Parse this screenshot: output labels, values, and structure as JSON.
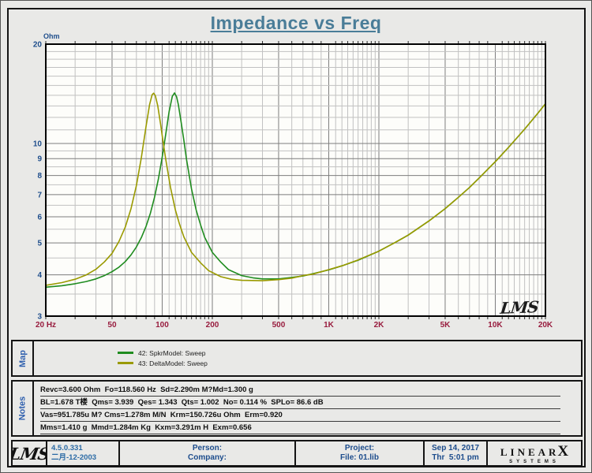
{
  "window": {
    "title": "Impedance vs Freq"
  },
  "graph": {
    "ohm_label": "Ohm",
    "watermark": "LMS"
  },
  "chart_data": {
    "type": "line",
    "title": "Impedance vs Freq",
    "ylabel": "Ohm",
    "x_scale": "log",
    "y_scale": "log",
    "xlim": [
      20,
      20000
    ],
    "ylim": [
      3,
      20
    ],
    "grid": {
      "v_mantissas": [
        1.1,
        1.2,
        1.3,
        1.4,
        1.5,
        1.6,
        1.7,
        1.8,
        1.9,
        2,
        3,
        4,
        5,
        6,
        7,
        8,
        9
      ],
      "v_major": [
        20,
        50,
        100,
        200,
        500,
        1000,
        2000,
        5000,
        10000,
        20000
      ],
      "h_minor": [
        3.5,
        4.5,
        5.5,
        6.5,
        7.5,
        8.5,
        9.5,
        11,
        12,
        13,
        14,
        15,
        16,
        17,
        18,
        19
      ],
      "h_major": [
        3,
        4,
        5,
        6,
        7,
        8,
        9,
        10,
        20
      ]
    },
    "x_ticks": [
      {
        "f": 20,
        "label": "20 Hz"
      },
      {
        "f": 50,
        "label": "50"
      },
      {
        "f": 100,
        "label": "100"
      },
      {
        "f": 200,
        "label": "200"
      },
      {
        "f": 500,
        "label": "500"
      },
      {
        "f": 1000,
        "label": "1K"
      },
      {
        "f": 2000,
        "label": "2K"
      },
      {
        "f": 5000,
        "label": "5K"
      },
      {
        "f": 10000,
        "label": "10K"
      },
      {
        "f": 20000,
        "label": "20K"
      }
    ],
    "y_ticks": [
      {
        "v": 20,
        "label": "20"
      },
      {
        "v": 10,
        "label": "10"
      },
      {
        "v": 9,
        "label": "9"
      },
      {
        "v": 8,
        "label": "8"
      },
      {
        "v": 7,
        "label": "7"
      },
      {
        "v": 6,
        "label": "6"
      },
      {
        "v": 5,
        "label": "5"
      },
      {
        "v": 4,
        "label": "4"
      },
      {
        "v": 3,
        "label": "3"
      }
    ],
    "series": [
      {
        "name": "42: SpkrModel: Sweep",
        "color": "#1f8c1f",
        "points": [
          [
            20,
            3.67
          ],
          [
            25,
            3.71
          ],
          [
            30,
            3.76
          ],
          [
            35,
            3.82
          ],
          [
            40,
            3.89
          ],
          [
            45,
            3.98
          ],
          [
            50,
            4.09
          ],
          [
            55,
            4.22
          ],
          [
            60,
            4.39
          ],
          [
            65,
            4.6
          ],
          [
            70,
            4.86
          ],
          [
            75,
            5.19
          ],
          [
            80,
            5.61
          ],
          [
            85,
            6.16
          ],
          [
            90,
            6.88
          ],
          [
            95,
            7.84
          ],
          [
            100,
            9.1
          ],
          [
            105,
            10.68
          ],
          [
            110,
            12.48
          ],
          [
            115,
            13.9
          ],
          [
            118.6,
            14.23
          ],
          [
            122,
            13.86
          ],
          [
            125,
            13.14
          ],
          [
            130,
            11.6
          ],
          [
            135,
            10.2
          ],
          [
            140,
            8.95
          ],
          [
            150,
            7.29
          ],
          [
            160,
            6.28
          ],
          [
            170,
            5.67
          ],
          [
            180,
            5.2
          ],
          [
            200,
            4.68
          ],
          [
            225,
            4.37
          ],
          [
            250,
            4.15
          ],
          [
            300,
            3.98
          ],
          [
            350,
            3.92
          ],
          [
            400,
            3.89
          ],
          [
            500,
            3.89
          ],
          [
            600,
            3.93
          ],
          [
            700,
            3.97
          ],
          [
            800,
            4.03
          ],
          [
            1000,
            4.14
          ],
          [
            1200,
            4.26
          ],
          [
            1500,
            4.43
          ],
          [
            2000,
            4.72
          ],
          [
            2500,
            5.01
          ],
          [
            3000,
            5.28
          ],
          [
            4000,
            5.83
          ],
          [
            5000,
            6.35
          ],
          [
            6000,
            6.87
          ],
          [
            7000,
            7.36
          ],
          [
            8000,
            7.86
          ],
          [
            10000,
            8.81
          ],
          [
            12000,
            9.73
          ],
          [
            15000,
            11.05
          ],
          [
            18000,
            12.35
          ],
          [
            20000,
            13.2
          ]
        ]
      },
      {
        "name": "43: DeltaModel: Sweep",
        "color": "#9a9a00",
        "points": [
          [
            20,
            3.72
          ],
          [
            25,
            3.79
          ],
          [
            30,
            3.88
          ],
          [
            35,
            4.0
          ],
          [
            40,
            4.16
          ],
          [
            45,
            4.38
          ],
          [
            50,
            4.65
          ],
          [
            55,
            5.05
          ],
          [
            60,
            5.58
          ],
          [
            65,
            6.35
          ],
          [
            70,
            7.46
          ],
          [
            75,
            9.07
          ],
          [
            80,
            11.26
          ],
          [
            84,
            13.12
          ],
          [
            87,
            14.05
          ],
          [
            88.9,
            14.21
          ],
          [
            91,
            13.96
          ],
          [
            94,
            13.03
          ],
          [
            98,
            11.39
          ],
          [
            101,
            10.2
          ],
          [
            105,
            8.95
          ],
          [
            112,
            7.38
          ],
          [
            120,
            6.29
          ],
          [
            127,
            5.7
          ],
          [
            135,
            5.21
          ],
          [
            150,
            4.68
          ],
          [
            170,
            4.35
          ],
          [
            190,
            4.12
          ],
          [
            225,
            3.95
          ],
          [
            260,
            3.88
          ],
          [
            300,
            3.85
          ],
          [
            400,
            3.84
          ],
          [
            500,
            3.87
          ],
          [
            600,
            3.91
          ],
          [
            700,
            3.98
          ],
          [
            800,
            4.02
          ],
          [
            1000,
            4.15
          ],
          [
            1200,
            4.26
          ],
          [
            1500,
            4.44
          ],
          [
            2000,
            4.72
          ],
          [
            2500,
            5.01
          ],
          [
            3000,
            5.28
          ],
          [
            4000,
            5.83
          ],
          [
            5000,
            6.35
          ],
          [
            6000,
            6.87
          ],
          [
            7000,
            7.36
          ],
          [
            8000,
            7.86
          ],
          [
            10000,
            8.81
          ],
          [
            12000,
            9.73
          ],
          [
            15000,
            11.05
          ],
          [
            18000,
            12.35
          ],
          [
            20000,
            13.2
          ]
        ]
      }
    ]
  },
  "legend": {
    "label": "Map",
    "items": [
      {
        "label": "42: SpkrModel: Sweep",
        "color": "#1f8c1f"
      },
      {
        "label": "43: DeltaModel: Sweep",
        "color": "#9a9a00"
      }
    ]
  },
  "notes": {
    "label": "Notes",
    "lines": [
      "Revc=3.600 Ohm  Fo=118.560 Hz  Sd=2.290m M?Md=1.300 g",
      "BL=1.678 T楼  Qms= 3.939  Qes= 1.343  Qts= 1.002  No= 0.114 %  SPLo= 86.6 dB",
      "Vas=951.785u M? Cms=1.278m M/N  Krm=150.726u Ohm  Erm=0.920",
      "Mms=1.410 g  Mmd=1.284m Kg  Kxm=3.291m H  Exm=0.656"
    ]
  },
  "footer": {
    "logo": "LMS",
    "version": "4.5.0.331",
    "version_date": "二月-12-2003",
    "person_label": "Person:",
    "company_label": "Company:",
    "project_label": "Project:",
    "file_label": "File: 01.lib",
    "date": "Sep 14, 2017",
    "time": "Thr  5:01 pm",
    "brand": {
      "linear": "LINEAR",
      "x": "X",
      "systems": "SYSTEMS"
    }
  },
  "colors": {
    "page_bg": "#e9e9e7",
    "plot_bg": "#fdfdfa",
    "title": "#4a7d98",
    "y_axis": "#1f4e8c",
    "x_axis": "#981c3e",
    "section_label": "#2e5fae",
    "footer_blue": "#2a6aa5",
    "footer_navy": "#1c4c8c",
    "grid_major": "#7d7d7d",
    "grid_minor": "#c1c1c1",
    "frame": "#000000"
  }
}
